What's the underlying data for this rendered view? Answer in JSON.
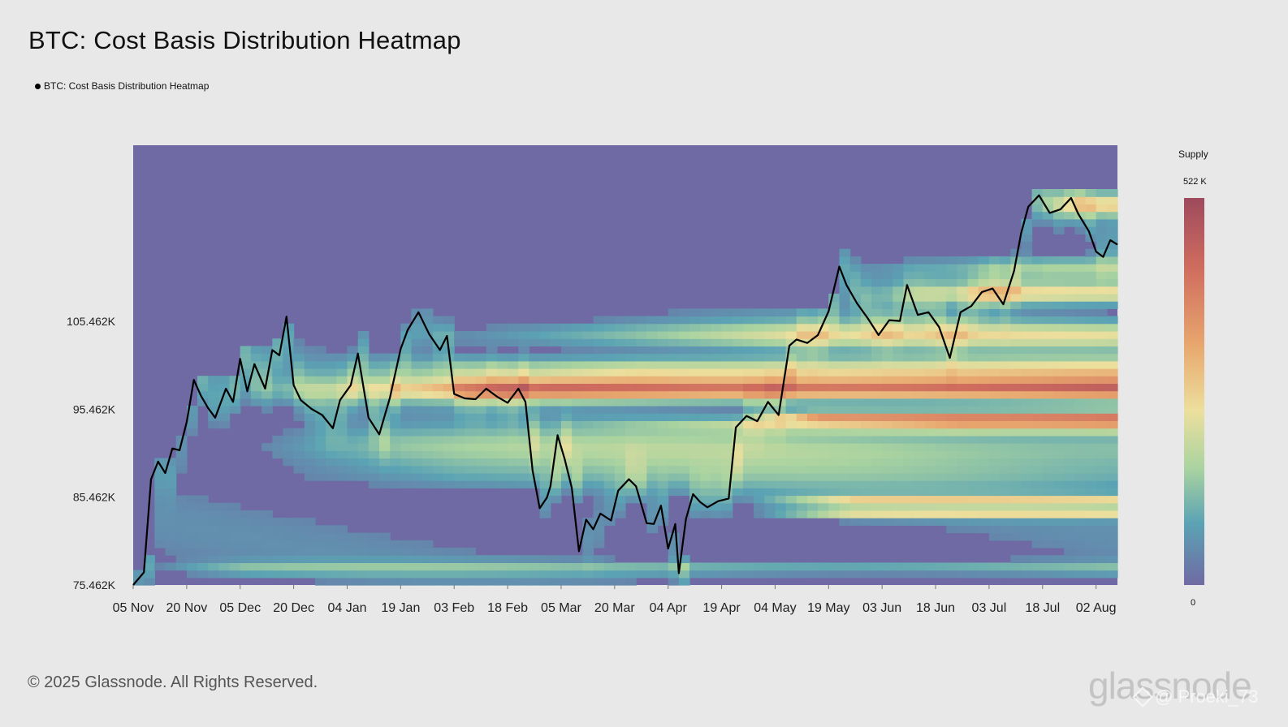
{
  "title": "BTC: Cost Basis Distribution Heatmap",
  "legend": {
    "label": "BTC: Cost Basis Distribution Heatmap",
    "color": "#000000"
  },
  "colorbar": {
    "title": "Supply",
    "max_label": "522 K",
    "min_label": "0",
    "colors": [
      "#9e4a5d",
      "#cf6c5e",
      "#e8a76e",
      "#ecdf9d",
      "#a9d3a0",
      "#5ba3b4",
      "#6f6aa3"
    ]
  },
  "footer": {
    "copyright": "© 2025 Glassnode. All Rights Reserved.",
    "brand": "glassnode",
    "watermark": "@ Proeki_73"
  },
  "chart_data": {
    "type": "heatmap",
    "title": "BTC: Cost Basis Distribution Heatmap",
    "x_axis": {
      "start": "2024-11-05",
      "end": "2025-08-08",
      "ticks": [
        "05 Nov",
        "20 Nov",
        "05 Dec",
        "20 Dec",
        "04 Jan",
        "19 Jan",
        "03 Feb",
        "18 Feb",
        "05 Mar",
        "20 Mar",
        "04 Apr",
        "19 Apr",
        "04 May",
        "19 May",
        "03 Jun",
        "18 Jun",
        "03 Jul",
        "18 Jul",
        "02 Aug"
      ]
    },
    "y_axis": {
      "ticks": [
        "75.462K",
        "85.462K",
        "95.462K",
        "105.462K"
      ],
      "tick_values": [
        75462,
        85462,
        95462,
        105462
      ],
      "range": [
        75462,
        125500
      ]
    },
    "value_range": [
      0,
      522000
    ],
    "price_series": {
      "name": "BTC: Cost Basis Distribution Heatmap",
      "dates": [
        "2024-11-05",
        "2024-11-08",
        "2024-11-10",
        "2024-11-12",
        "2024-11-14",
        "2024-11-16",
        "2024-11-18",
        "2024-11-20",
        "2024-11-22",
        "2024-11-24",
        "2024-11-26",
        "2024-11-28",
        "2024-12-01",
        "2024-12-03",
        "2024-12-05",
        "2024-12-07",
        "2024-12-09",
        "2024-12-12",
        "2024-12-14",
        "2024-12-16",
        "2024-12-18",
        "2024-12-20",
        "2024-12-22",
        "2024-12-25",
        "2024-12-28",
        "2024-12-31",
        "2025-01-02",
        "2025-01-05",
        "2025-01-07",
        "2025-01-10",
        "2025-01-13",
        "2025-01-16",
        "2025-01-19",
        "2025-01-21",
        "2025-01-24",
        "2025-01-27",
        "2025-01-30",
        "2025-02-01",
        "2025-02-03",
        "2025-02-06",
        "2025-02-09",
        "2025-02-12",
        "2025-02-15",
        "2025-02-18",
        "2025-02-21",
        "2025-02-23",
        "2025-02-25",
        "2025-02-27",
        "2025-03-01",
        "2025-03-02",
        "2025-03-04",
        "2025-03-06",
        "2025-03-08",
        "2025-03-10",
        "2025-03-12",
        "2025-03-14",
        "2025-03-16",
        "2025-03-19",
        "2025-03-21",
        "2025-03-24",
        "2025-03-26",
        "2025-03-29",
        "2025-03-31",
        "2025-04-02",
        "2025-04-04",
        "2025-04-06",
        "2025-04-07",
        "2025-04-09",
        "2025-04-11",
        "2025-04-13",
        "2025-04-15",
        "2025-04-18",
        "2025-04-21",
        "2025-04-23",
        "2025-04-26",
        "2025-04-29",
        "2025-05-02",
        "2025-05-05",
        "2025-05-08",
        "2025-05-10",
        "2025-05-13",
        "2025-05-16",
        "2025-05-19",
        "2025-05-22",
        "2025-05-24",
        "2025-05-27",
        "2025-05-30",
        "2025-06-02",
        "2025-06-05",
        "2025-06-08",
        "2025-06-10",
        "2025-06-13",
        "2025-06-16",
        "2025-06-19",
        "2025-06-22",
        "2025-06-25",
        "2025-06-28",
        "2025-07-01",
        "2025-07-04",
        "2025-07-07",
        "2025-07-10",
        "2025-07-12",
        "2025-07-14",
        "2025-07-17",
        "2025-07-20",
        "2025-07-23",
        "2025-07-26",
        "2025-07-28",
        "2025-07-31",
        "2025-08-02",
        "2025-08-04",
        "2025-08-06",
        "2025-08-08"
      ],
      "values": [
        75462,
        76900,
        87500,
        89500,
        88200,
        91000,
        90800,
        94000,
        98800,
        97000,
        95600,
        94500,
        97800,
        96300,
        101200,
        97500,
        100600,
        97800,
        102200,
        101600,
        106000,
        98200,
        96500,
        95500,
        94800,
        93300,
        96500,
        98200,
        101800,
        94500,
        92600,
        96800,
        102300,
        104500,
        106500,
        104000,
        102200,
        103800,
        97200,
        96700,
        96600,
        97800,
        96900,
        96200,
        97800,
        96300,
        88500,
        84200,
        85400,
        86700,
        92500,
        89800,
        86500,
        79300,
        82900,
        81800,
        83600,
        82800,
        86200,
        87500,
        86700,
        82500,
        82400,
        84500,
        79600,
        82400,
        76800,
        83000,
        85800,
        84900,
        84300,
        85000,
        85300,
        93400,
        94700,
        94100,
        96300,
        94800,
        102700,
        103400,
        103000,
        103900,
        106600,
        111700,
        109600,
        107500,
        105800,
        103900,
        105600,
        105500,
        109600,
        106200,
        106500,
        104800,
        101300,
        106500,
        107200,
        108800,
        109200,
        107400,
        111200,
        115500,
        118500,
        119800,
        117800,
        118200,
        119500,
        117700,
        115700,
        113400,
        112800,
        114700,
        114200
      ]
    }
  }
}
